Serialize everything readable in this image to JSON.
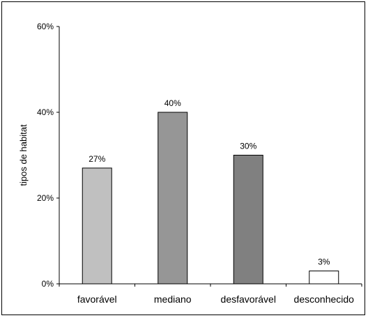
{
  "chart_data": {
    "type": "bar",
    "ylabel": "tipos de habitat",
    "ylim": [
      0,
      60
    ],
    "yticks": [
      "0%",
      "20%",
      "40%",
      "60%"
    ],
    "ytick_values": [
      0,
      20,
      40,
      60
    ],
    "categories": [
      "favorável",
      "mediano",
      "desfavorável",
      "desconhecido"
    ],
    "values": [
      27,
      40,
      30,
      3
    ],
    "data_labels": [
      "27%",
      "40%",
      "30%",
      "3%"
    ],
    "bar_colors": [
      "#c0c0c0",
      "#969696",
      "#808080",
      "#ffffff"
    ],
    "grid": false,
    "legend": "none"
  }
}
